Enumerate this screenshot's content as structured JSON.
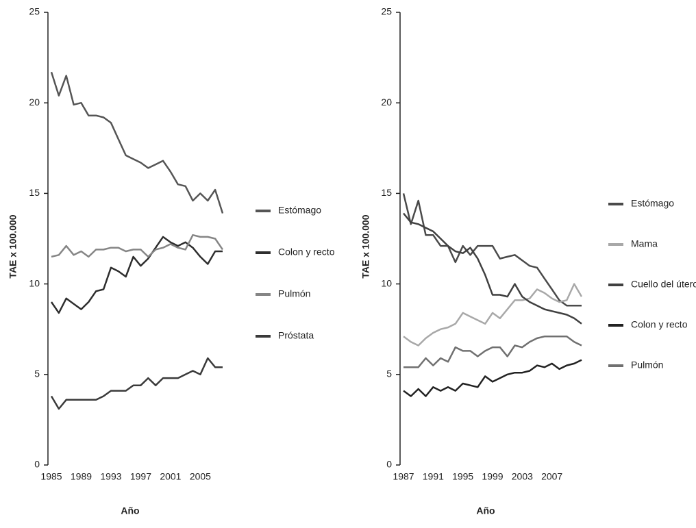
{
  "chart_data": [
    {
      "type": "line",
      "x_label": "Año",
      "y_label": "TAE x 100.000",
      "x": [
        1985,
        1986,
        1987,
        1988,
        1989,
        1990,
        1991,
        1992,
        1993,
        1994,
        1995,
        1996,
        1997,
        1998,
        1999,
        2000,
        2001,
        2002,
        2003,
        2004,
        2005,
        2006,
        2007,
        2008
      ],
      "xlim": [
        1985,
        2008
      ],
      "xticks": [
        1985,
        1989,
        1993,
        1997,
        2001,
        2005
      ],
      "ylim": [
        0,
        25
      ],
      "yticks": [
        0,
        5,
        10,
        15,
        20,
        25
      ],
      "series": [
        {
          "name": "Estómago",
          "color": "#555555",
          "values": [
            21.7,
            20.4,
            21.5,
            19.9,
            20.0,
            19.3,
            19.3,
            19.2,
            18.9,
            18.0,
            17.1,
            16.9,
            16.7,
            16.4,
            16.6,
            16.8,
            16.2,
            15.5,
            15.4,
            14.6,
            15.0,
            14.6,
            15.2,
            13.9
          ]
        },
        {
          "name": "Colon y recto",
          "color": "#2e2e2e",
          "values": [
            9.0,
            8.4,
            9.2,
            8.9,
            8.6,
            9.0,
            9.6,
            9.7,
            10.9,
            10.7,
            10.4,
            11.5,
            11.0,
            11.4,
            12.0,
            12.6,
            12.3,
            12.1,
            12.3,
            12.0,
            11.5,
            11.1,
            11.8,
            11.8
          ]
        },
        {
          "name": "Pulmón",
          "color": "#858585",
          "values": [
            11.5,
            11.6,
            12.1,
            11.6,
            11.8,
            11.5,
            11.9,
            11.9,
            12.0,
            12.0,
            11.8,
            11.9,
            11.9,
            11.5,
            11.9,
            12.0,
            12.2,
            12.0,
            11.9,
            12.7,
            12.6,
            12.6,
            12.5,
            11.9
          ]
        },
        {
          "name": "Próstata",
          "color": "#3a3a3a",
          "values": [
            3.8,
            3.1,
            3.6,
            3.6,
            3.6,
            3.6,
            3.6,
            3.8,
            4.1,
            4.1,
            4.1,
            4.4,
            4.4,
            4.8,
            4.4,
            4.8,
            4.8,
            4.8,
            5.0,
            5.2,
            5.0,
            5.9,
            5.4,
            5.4
          ]
        }
      ]
    },
    {
      "type": "line",
      "x_label": "Año",
      "y_label": "TAE x 100.000",
      "x": [
        1987,
        1988,
        1989,
        1990,
        1991,
        1992,
        1993,
        1994,
        1995,
        1996,
        1997,
        1998,
        1999,
        2000,
        2001,
        2002,
        2003,
        2004,
        2005,
        2006,
        2007,
        2008,
        2009,
        2010,
        2011
      ],
      "xlim": [
        1987,
        2011
      ],
      "xticks": [
        1987,
        1991,
        1995,
        1999,
        2003,
        2007
      ],
      "ylim": [
        0,
        25
      ],
      "yticks": [
        0,
        5,
        10,
        15,
        20,
        25
      ],
      "series": [
        {
          "name": "Estómago",
          "color": "#4a4a4a",
          "values": [
            15.0,
            13.3,
            14.6,
            12.7,
            12.7,
            12.1,
            12.1,
            11.2,
            12.1,
            11.6,
            12.1,
            12.1,
            12.1,
            11.4,
            11.5,
            11.6,
            11.3,
            11.0,
            10.9,
            10.3,
            9.7,
            9.1,
            8.8,
            8.8,
            8.8
          ]
        },
        {
          "name": "Mama",
          "color": "#a8a8a8",
          "values": [
            7.1,
            6.8,
            6.6,
            7.0,
            7.3,
            7.5,
            7.6,
            7.8,
            8.4,
            8.2,
            8.0,
            7.8,
            8.4,
            8.1,
            8.6,
            9.1,
            9.1,
            9.2,
            9.7,
            9.5,
            9.2,
            9.0,
            9.1,
            10.0,
            9.3
          ]
        },
        {
          "name": "Cuello del útero",
          "color": "#404040",
          "values": [
            13.9,
            13.4,
            13.3,
            13.1,
            12.9,
            12.5,
            12.1,
            11.8,
            11.7,
            12.0,
            11.4,
            10.5,
            9.4,
            9.4,
            9.3,
            10.0,
            9.3,
            9.0,
            8.8,
            8.6,
            8.5,
            8.4,
            8.3,
            8.1,
            7.8
          ]
        },
        {
          "name": "Colon y recto",
          "color": "#222222",
          "values": [
            4.1,
            3.8,
            4.2,
            3.8,
            4.3,
            4.1,
            4.3,
            4.1,
            4.5,
            4.4,
            4.3,
            4.9,
            4.6,
            4.8,
            5.0,
            5.1,
            5.1,
            5.2,
            5.5,
            5.4,
            5.6,
            5.3,
            5.5,
            5.6,
            5.8
          ]
        },
        {
          "name": "Pulmón",
          "color": "#707070",
          "values": [
            5.4,
            5.4,
            5.4,
            5.9,
            5.5,
            5.9,
            5.7,
            6.5,
            6.3,
            6.3,
            6.0,
            6.3,
            6.5,
            6.5,
            6.0,
            6.6,
            6.5,
            6.8,
            7.0,
            7.1,
            7.1,
            7.1,
            7.1,
            6.8,
            6.6
          ]
        }
      ]
    }
  ]
}
